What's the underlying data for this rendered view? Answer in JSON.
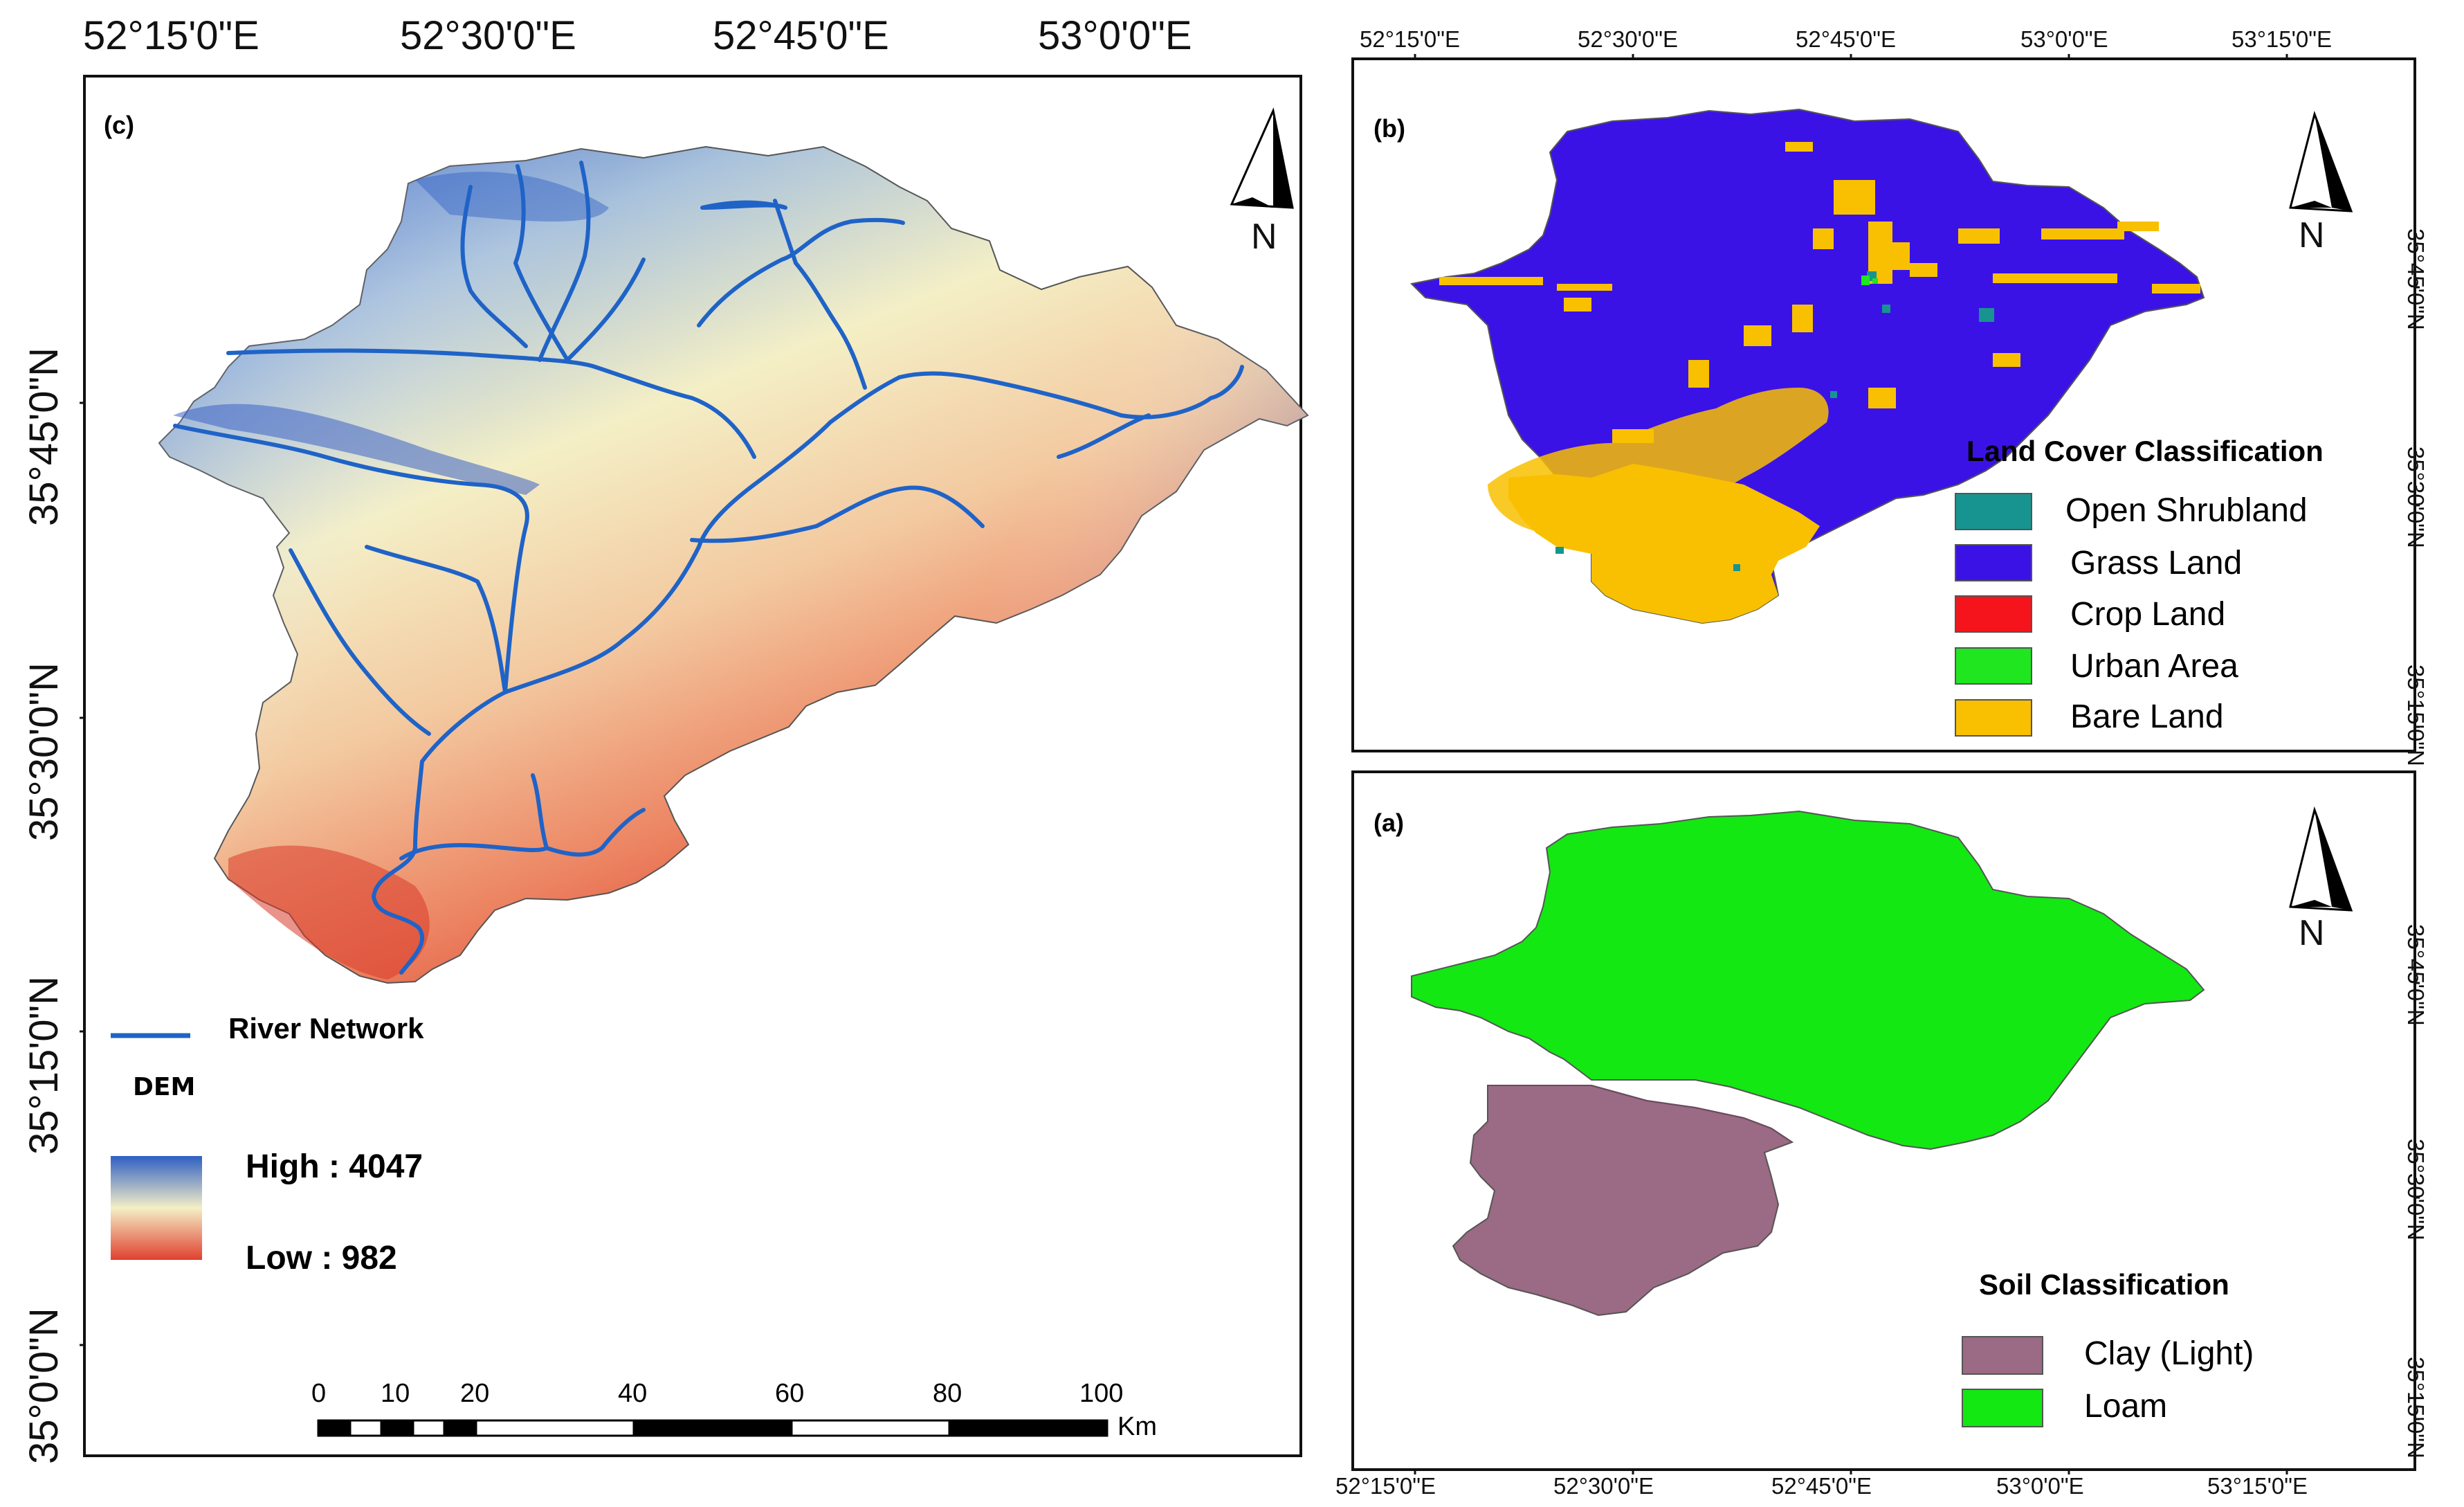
{
  "panel_c": {
    "letter": "(c)",
    "top_lon_labels": [
      "52°15'0\"E",
      "52°30'0\"E",
      "52°45'0\"E",
      "53°0'0\"E"
    ],
    "left_lat_labels": [
      "35°45'0\"N",
      "35°30'0\"N",
      "35°15'0\"N",
      "35°0'0\"N"
    ],
    "north": "N",
    "river_label": "River Network",
    "dem_title": "DEM",
    "high_label": "High : 4047",
    "low_label": "Low : 982",
    "scale_numbers": [
      "0",
      "10",
      "20",
      "40",
      "60",
      "80",
      "100"
    ],
    "scale_unit": "Km",
    "colors": {
      "high": "#2f5fc4",
      "mid": "#f4efc6",
      "low": "#e0402f",
      "river": "#1f63c7"
    }
  },
  "panel_b": {
    "letter": "(b)",
    "top_lon_labels": [
      "52°15'0\"E",
      "52°30'0\"E",
      "52°45'0\"E",
      "53°0'0\"E",
      "53°15'0\"E"
    ],
    "right_lat_labels": [
      "35°45'0\"N",
      "35°30'0\"N",
      "35°15'0\"N"
    ],
    "north": "N",
    "legend_title": "Land Cover Classification",
    "legend": [
      {
        "label": "Open Shrubland",
        "color": "#17948f"
      },
      {
        "label": "Grass Land",
        "color": "#3b12e6"
      },
      {
        "label": "Crop Land",
        "color": "#f5141b"
      },
      {
        "label": "Urban Area",
        "color": "#1fe61f"
      },
      {
        "label": "Bare Land",
        "color": "#f8c000"
      }
    ]
  },
  "panel_a": {
    "letter": "(a)",
    "bottom_lon_labels": [
      "52°15'0\"E",
      "52°30'0\"E",
      "52°45'0\"E",
      "53°0'0\"E",
      "53°15'0\"E"
    ],
    "right_lat_labels": [
      "35°45'0\"N",
      "35°30'0\"N",
      "35°15'0\"N"
    ],
    "north": "N",
    "legend_title": "Soil Classification",
    "legend": [
      {
        "label": "Clay (Light)",
        "color": "#9b6a84"
      },
      {
        "label": "Loam",
        "color": "#13e813"
      }
    ]
  }
}
